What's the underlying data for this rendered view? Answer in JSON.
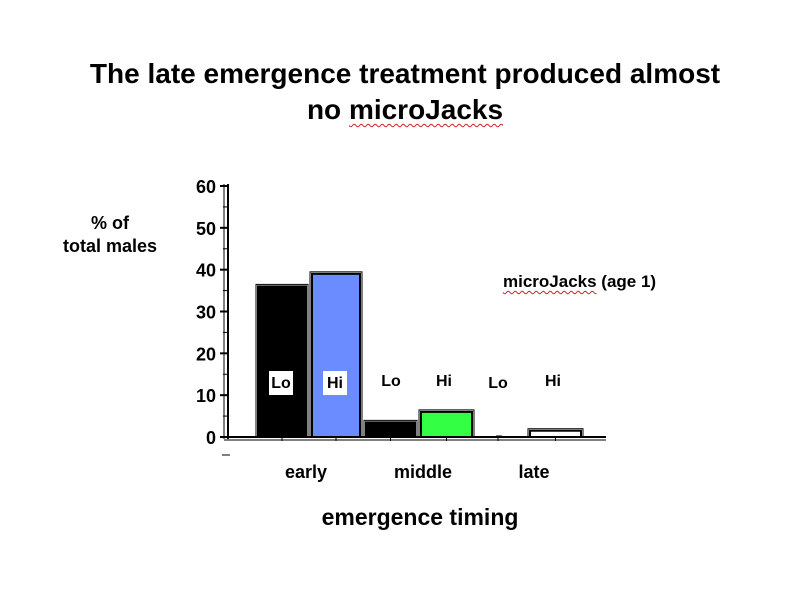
{
  "title": {
    "line1": "The late emergence treatment produced almost",
    "line2_prefix": "no ",
    "line2_word": "microJacks"
  },
  "chart_data": {
    "type": "bar",
    "ylabel_line1": "% of",
    "ylabel_line2": "total males",
    "xlabel": "emergence timing",
    "legend_prefix": "",
    "legend_word": "microJacks",
    "legend_suffix": " (age 1)",
    "ylim": [
      0,
      60
    ],
    "yticks": [
      0,
      10,
      20,
      30,
      40,
      50,
      60
    ],
    "groups": [
      "early",
      "middle",
      "late"
    ],
    "bars": [
      {
        "group": "early",
        "label": "Lo",
        "value": 36,
        "color": "#000000"
      },
      {
        "group": "early",
        "label": "Hi",
        "value": 39,
        "color": "#6b8cff"
      },
      {
        "group": "middle",
        "label": "Lo",
        "value": 3.5,
        "color": "#000000"
      },
      {
        "group": "middle",
        "label": "Hi",
        "value": 6,
        "color": "#33ff44"
      },
      {
        "group": "late",
        "label": "Lo",
        "value": 0,
        "color": "#000000"
      },
      {
        "group": "late",
        "label": "Hi",
        "value": 1.5,
        "color": "#ffffff"
      }
    ]
  }
}
